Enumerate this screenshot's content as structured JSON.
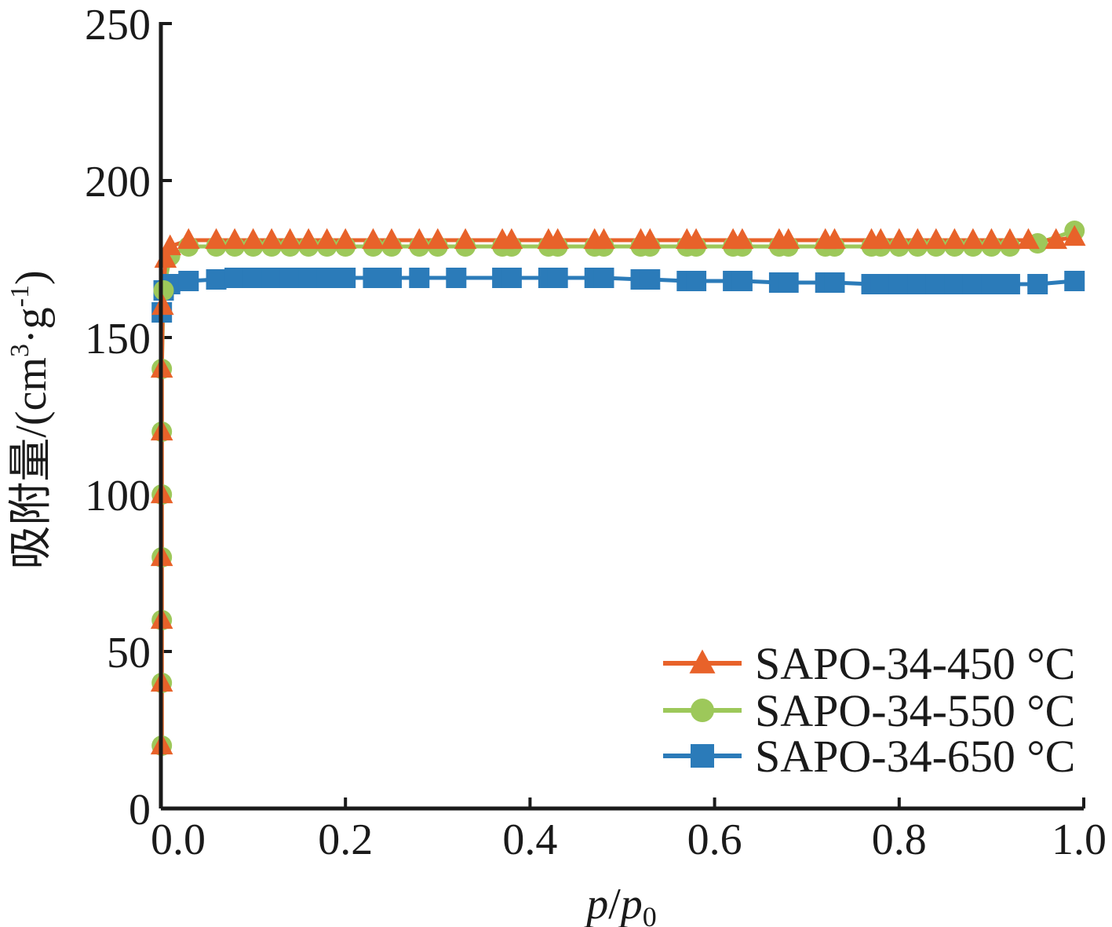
{
  "chart_data": {
    "type": "line",
    "xlabel_italic_1": "p",
    "xlabel_sep": "/",
    "xlabel_italic_2": "p",
    "xlabel_sub": "0",
    "ylabel_main": "吸附量/(cm",
    "ylabel_sup1": "3",
    "ylabel_mid": "·g",
    "ylabel_sup2": "-1",
    "ylabel_end": ")",
    "xlim": [
      0,
      1.0
    ],
    "ylim": [
      0,
      250
    ],
    "x_ticks": [
      "0.0",
      "0.2",
      "0.4",
      "0.6",
      "0.8",
      "1.0"
    ],
    "y_ticks": [
      "0",
      "50",
      "100",
      "150",
      "200",
      "250"
    ],
    "legend_position": "bottom-right",
    "series": [
      {
        "name": "SAPO-34-450 °C",
        "color": "#e8622a",
        "marker": "triangle",
        "x": [
          0.001,
          0.001,
          0.001,
          0.001,
          0.001,
          0.001,
          0.001,
          0.002,
          0.005,
          0.01,
          0.03,
          0.06,
          0.08,
          0.1,
          0.12,
          0.14,
          0.16,
          0.18,
          0.2,
          0.23,
          0.25,
          0.28,
          0.3,
          0.33,
          0.37,
          0.38,
          0.42,
          0.43,
          0.47,
          0.48,
          0.52,
          0.53,
          0.57,
          0.58,
          0.62,
          0.63,
          0.67,
          0.68,
          0.72,
          0.73,
          0.77,
          0.78,
          0.8,
          0.82,
          0.84,
          0.86,
          0.88,
          0.9,
          0.92,
          0.94,
          0.97,
          0.99
        ],
        "y": [
          20,
          40,
          60,
          80,
          100,
          120,
          140,
          160,
          175,
          179,
          181,
          181,
          181,
          181,
          181,
          181,
          181,
          181,
          181,
          181,
          181,
          181,
          181,
          181,
          181,
          181,
          181,
          181,
          181,
          181,
          181,
          181,
          181,
          181,
          181,
          181,
          181,
          181,
          181,
          181,
          181,
          181,
          181,
          181,
          181,
          181,
          181,
          181,
          181,
          181,
          181,
          182
        ]
      },
      {
        "name": "SAPO-34-550 °C",
        "color": "#9dc85a",
        "marker": "circle",
        "x": [
          0.001,
          0.001,
          0.001,
          0.001,
          0.001,
          0.001,
          0.001,
          0.003,
          0.01,
          0.03,
          0.06,
          0.08,
          0.1,
          0.12,
          0.14,
          0.16,
          0.18,
          0.2,
          0.23,
          0.25,
          0.28,
          0.3,
          0.33,
          0.37,
          0.38,
          0.42,
          0.43,
          0.47,
          0.48,
          0.52,
          0.53,
          0.57,
          0.58,
          0.62,
          0.63,
          0.67,
          0.68,
          0.72,
          0.73,
          0.77,
          0.78,
          0.8,
          0.82,
          0.84,
          0.86,
          0.88,
          0.9,
          0.92,
          0.95,
          0.99
        ],
        "y": [
          20,
          40,
          60,
          80,
          100,
          120,
          140,
          165,
          176,
          179,
          179,
          179,
          179,
          179,
          179,
          179,
          179,
          179,
          179,
          179,
          179,
          179,
          179,
          179,
          179,
          179,
          179,
          179,
          179,
          179,
          179,
          179,
          179,
          179,
          179,
          179,
          179,
          179,
          179,
          179,
          179,
          179,
          179,
          179,
          179,
          179,
          179,
          179,
          180,
          184
        ]
      },
      {
        "name": "SAPO-34-650 °C",
        "color": "#2b7bb9",
        "marker": "square",
        "x": [
          0.001,
          0.003,
          0.01,
          0.03,
          0.06,
          0.08,
          0.1,
          0.12,
          0.14,
          0.16,
          0.18,
          0.2,
          0.23,
          0.25,
          0.28,
          0.32,
          0.37,
          0.38,
          0.42,
          0.43,
          0.47,
          0.48,
          0.52,
          0.53,
          0.57,
          0.58,
          0.62,
          0.63,
          0.67,
          0.68,
          0.72,
          0.73,
          0.77,
          0.78,
          0.8,
          0.82,
          0.84,
          0.86,
          0.88,
          0.9,
          0.92,
          0.95,
          0.99
        ],
        "y": [
          158,
          165,
          167,
          168,
          168.5,
          169,
          169,
          169,
          169,
          169,
          169,
          169,
          169,
          169,
          169,
          169,
          169,
          169,
          169,
          169,
          169,
          169,
          168.5,
          168.5,
          168,
          168,
          168,
          168,
          167.5,
          167.5,
          167.5,
          167.5,
          167,
          167,
          167,
          167,
          167,
          167,
          167,
          167,
          167,
          167,
          168
        ]
      }
    ]
  }
}
